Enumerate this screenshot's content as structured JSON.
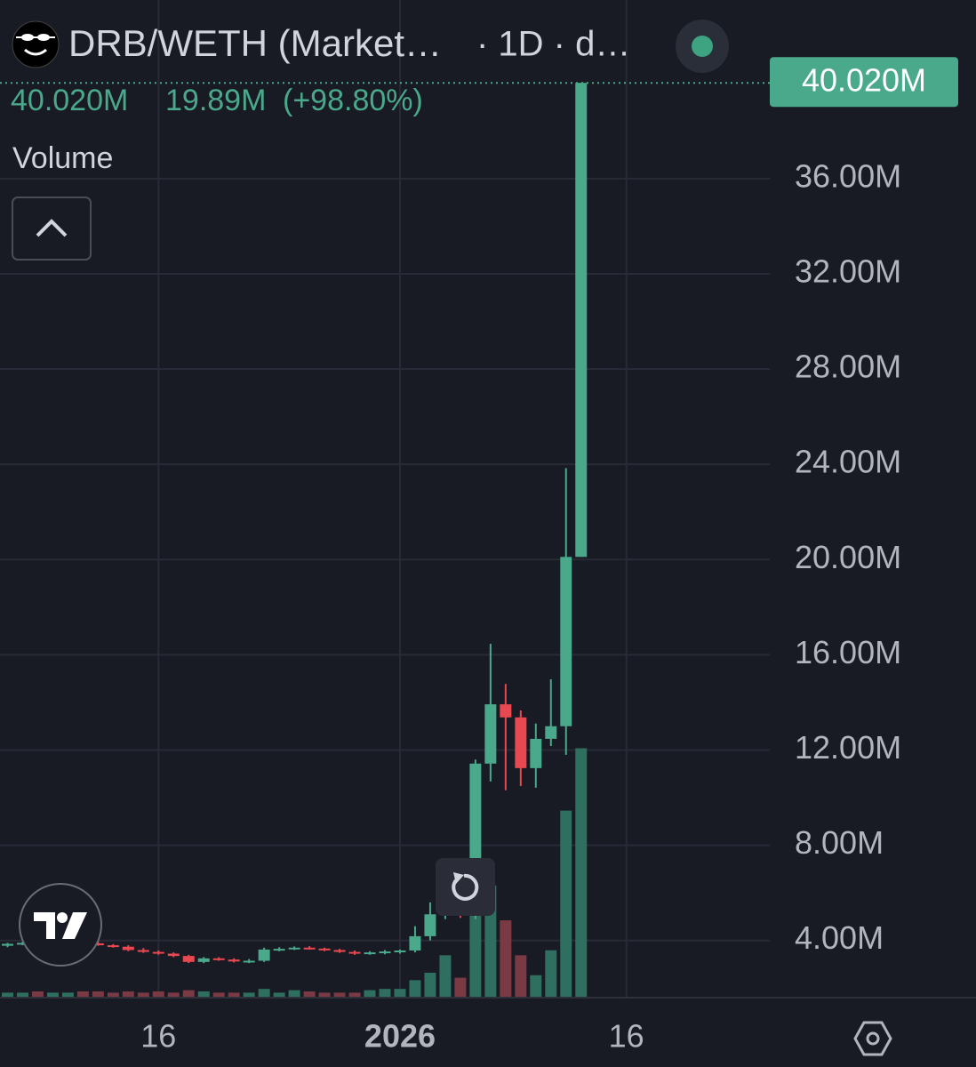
{
  "chart_data": {
    "type": "candlestick",
    "title": "DRB/WETH (Market…",
    "interval": "· 1D · d…",
    "change_label": "19.89M",
    "change_percent_label": "(+98.80%)",
    "volume_label": "Volume",
    "last_price": {
      "value": 40.02,
      "label": "40.020M"
    },
    "x": [
      -26,
      -25,
      -24,
      -23,
      -22,
      -21,
      -20,
      -19,
      -18,
      -17,
      -16,
      -15,
      -14,
      -13,
      -12,
      -11,
      -10,
      -9,
      -8,
      -7,
      -6,
      -5,
      -4,
      -3,
      -2,
      -1,
      0,
      1,
      2,
      3,
      4,
      5,
      6,
      7,
      8,
      9,
      10,
      11,
      12
    ],
    "open": [
      3.78,
      3.86,
      3.9,
      3.88,
      3.92,
      3.95,
      3.88,
      3.8,
      3.74,
      3.6,
      3.52,
      3.45,
      3.35,
      3.1,
      3.25,
      3.2,
      3.12,
      3.15,
      3.62,
      3.65,
      3.7,
      3.66,
      3.6,
      3.52,
      3.45,
      3.5,
      3.54,
      3.58,
      4.18,
      5.1,
      5.27,
      5.05,
      11.43,
      13.92,
      13.37,
      11.24,
      12.47,
      13.0,
      20.11
    ],
    "high": [
      3.9,
      3.95,
      4.0,
      3.98,
      4.02,
      4.0,
      3.95,
      3.85,
      3.8,
      3.68,
      3.58,
      3.5,
      3.4,
      3.3,
      3.3,
      3.25,
      3.22,
      3.7,
      3.72,
      3.75,
      3.76,
      3.7,
      3.65,
      3.58,
      3.55,
      3.6,
      3.62,
      4.6,
      5.6,
      5.5,
      5.9,
      11.6,
      16.46,
      14.78,
      13.66,
      13.11,
      14.97,
      23.84,
      40.02
    ],
    "low": [
      3.72,
      3.8,
      3.82,
      3.8,
      3.85,
      3.85,
      3.78,
      3.7,
      3.55,
      3.48,
      3.4,
      3.3,
      3.05,
      3.05,
      3.15,
      3.08,
      3.05,
      3.1,
      3.55,
      3.6,
      3.62,
      3.55,
      3.48,
      3.4,
      3.4,
      3.42,
      3.45,
      3.5,
      4.0,
      4.9,
      4.95,
      4.9,
      10.68,
      10.31,
      10.49,
      10.42,
      12.17,
      11.8,
      20.11
    ],
    "close": [
      3.86,
      3.9,
      3.88,
      3.92,
      3.95,
      3.88,
      3.8,
      3.74,
      3.6,
      3.52,
      3.45,
      3.35,
      3.1,
      3.25,
      3.2,
      3.12,
      3.15,
      3.62,
      3.65,
      3.7,
      3.66,
      3.6,
      3.52,
      3.45,
      3.5,
      3.54,
      3.58,
      4.18,
      5.1,
      5.27,
      5.05,
      11.43,
      13.92,
      13.37,
      11.24,
      12.47,
      13.0,
      20.11,
      40.02
    ],
    "volume": [
      2,
      2,
      2.5,
      2,
      2,
      2.5,
      2.5,
      2,
      2.5,
      2,
      2.5,
      2,
      3,
      2.5,
      2,
      2,
      2,
      3.5,
      2,
      3,
      2.5,
      2,
      2,
      2,
      3,
      3.5,
      3.5,
      7,
      10,
      17,
      8,
      40,
      45,
      31,
      17,
      9,
      19,
      75,
      100
    ],
    "volume_ylim": [
      0,
      400
    ],
    "up_color": "#4aa88b",
    "down_color": "#e8484f",
    "volume_up_color": "#2f6f60",
    "volume_down_color": "#7a3a44",
    "xlim": [
      -26.5,
      24.5
    ],
    "xticks": [
      {
        "value": -16,
        "label": "16"
      },
      {
        "value": 0,
        "label": "2026"
      },
      {
        "value": 15,
        "label": "16"
      }
    ],
    "ylim": [
      1.6,
      43.5
    ],
    "yticks": [
      {
        "value": 4,
        "label": "4.00M"
      },
      {
        "value": 8,
        "label": "8.00M"
      },
      {
        "value": 12,
        "label": "12.00M"
      },
      {
        "value": 16,
        "label": "16.00M"
      },
      {
        "value": 20,
        "label": "20.00M"
      },
      {
        "value": 24,
        "label": "24.00M"
      },
      {
        "value": 28,
        "label": "28.00M"
      },
      {
        "value": 32,
        "label": "32.00M"
      },
      {
        "value": 36,
        "label": "36.00M"
      }
    ],
    "grid": true
  }
}
